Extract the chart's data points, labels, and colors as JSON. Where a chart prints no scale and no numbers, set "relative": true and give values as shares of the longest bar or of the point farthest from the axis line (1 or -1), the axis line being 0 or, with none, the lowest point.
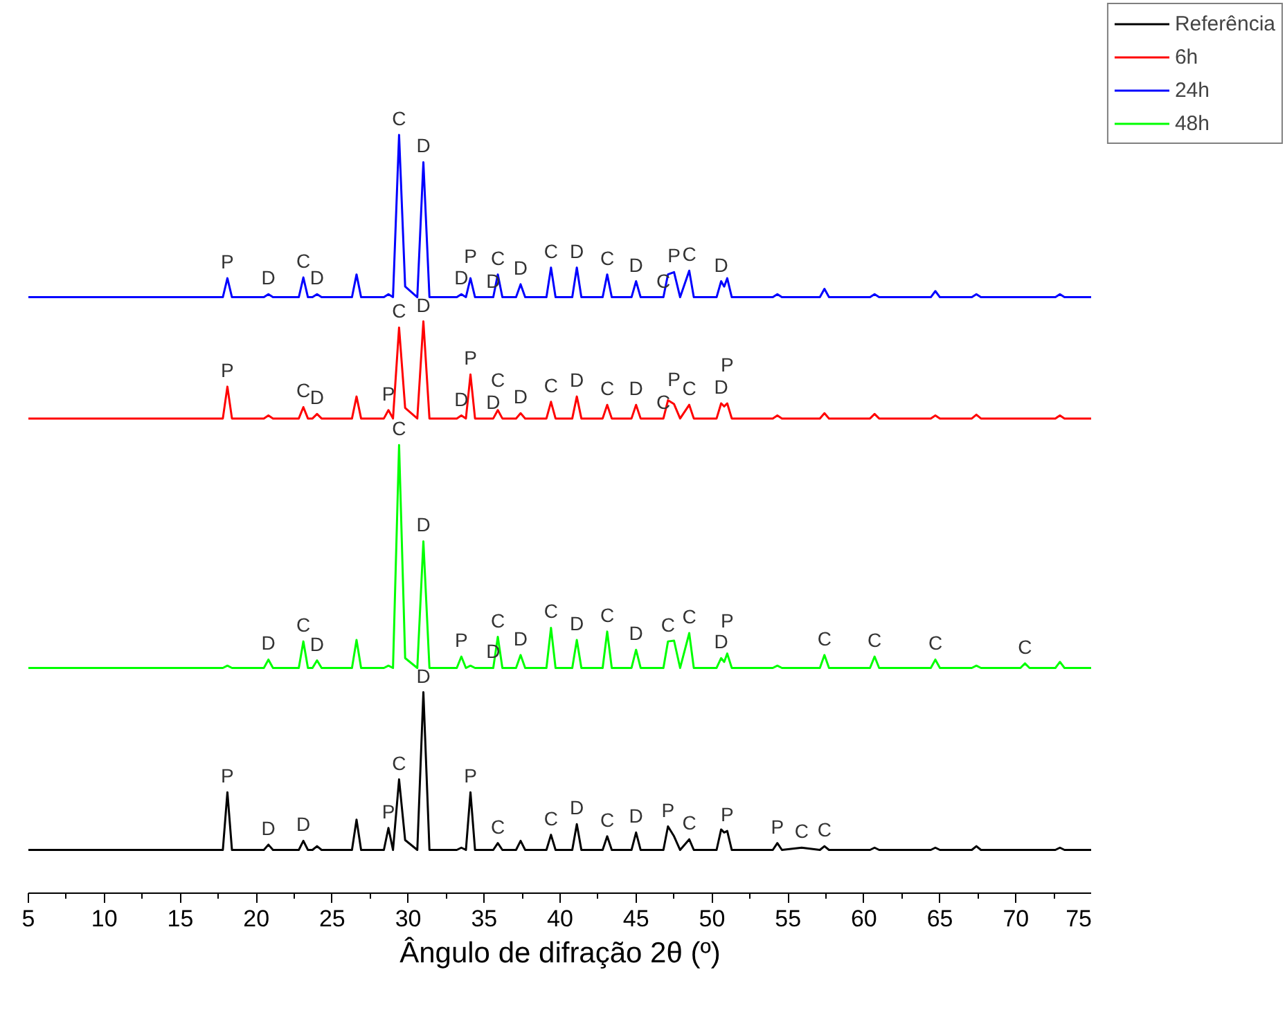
{
  "chart_data": {
    "type": "line",
    "relative": true,
    "xlabel": "Ângulo de difração 2θ (º)",
    "xlim": [
      5,
      75
    ],
    "xticks": [
      5,
      10,
      15,
      20,
      25,
      30,
      35,
      40,
      45,
      50,
      55,
      60,
      65,
      70,
      75
    ],
    "grid": false,
    "legend": "top right",
    "marker": "none",
    "line_style": "solid",
    "x": [
      5,
      17.8,
      18.1,
      18.4,
      20.5,
      20.8,
      21.1,
      22.8,
      23.1,
      23.4,
      23.7,
      24.0,
      24.3,
      26.3,
      26.6,
      26.9,
      28.4,
      28.7,
      29.0,
      29.4,
      29.8,
      30.6,
      31.0,
      31.4,
      33.2,
      33.5,
      33.8,
      34.1,
      34.4,
      35.6,
      35.9,
      36.2,
      37.1,
      37.4,
      37.7,
      39.1,
      39.4,
      39.7,
      40.8,
      41.1,
      41.4,
      42.8,
      43.1,
      43.4,
      44.7,
      45.0,
      45.3,
      46.8,
      47.1,
      47.5,
      47.9,
      48.5,
      48.8,
      50.3,
      50.6,
      50.8,
      51.0,
      51.3,
      54.0,
      54.3,
      54.6,
      55.9,
      57.1,
      57.4,
      57.7,
      60.4,
      60.7,
      61.0,
      64.4,
      64.7,
      65.0,
      67.1,
      67.4,
      67.7,
      70.3,
      70.6,
      70.9,
      72.6,
      72.9,
      73.2,
      75
    ],
    "series": [
      {
        "name": "Referência",
        "color": "#000000",
        "values": [
          0.057,
          0.057,
          0.133,
          0.057,
          0.057,
          0.064,
          0.057,
          0.057,
          0.069,
          0.057,
          0.057,
          0.062,
          0.057,
          0.057,
          0.097,
          0.057,
          0.057,
          0.086,
          0.057,
          0.15,
          0.07,
          0.057,
          0.265,
          0.057,
          0.057,
          0.06,
          0.057,
          0.133,
          0.057,
          0.057,
          0.066,
          0.057,
          0.057,
          0.069,
          0.057,
          0.057,
          0.077,
          0.057,
          0.057,
          0.091,
          0.057,
          0.057,
          0.075,
          0.057,
          0.057,
          0.08,
          0.057,
          0.057,
          0.088,
          0.075,
          0.057,
          0.071,
          0.057,
          0.057,
          0.084,
          0.08,
          0.082,
          0.057,
          0.057,
          0.066,
          0.057,
          0.06,
          0.057,
          0.062,
          0.057,
          0.057,
          0.06,
          0.057,
          0.057,
          0.06,
          0.057,
          0.057,
          0.062,
          0.057,
          0.057,
          0.057,
          0.057,
          0.057,
          0.06,
          0.057,
          0.057
        ]
      },
      {
        "name": "6h",
        "color": "#ff0000",
        "values": [
          0.626,
          0.626,
          0.668,
          0.626,
          0.626,
          0.63,
          0.626,
          0.626,
          0.641,
          0.626,
          0.626,
          0.632,
          0.626,
          0.626,
          0.655,
          0.626,
          0.626,
          0.637,
          0.626,
          0.746,
          0.64,
          0.626,
          0.754,
          0.626,
          0.626,
          0.63,
          0.626,
          0.684,
          0.626,
          0.626,
          0.637,
          0.626,
          0.626,
          0.633,
          0.626,
          0.626,
          0.648,
          0.626,
          0.626,
          0.655,
          0.626,
          0.626,
          0.644,
          0.626,
          0.626,
          0.644,
          0.626,
          0.626,
          0.65,
          0.645,
          0.626,
          0.644,
          0.626,
          0.626,
          0.646,
          0.642,
          0.646,
          0.626,
          0.626,
          0.63,
          0.626,
          0.626,
          0.626,
          0.633,
          0.626,
          0.626,
          0.632,
          0.626,
          0.626,
          0.63,
          0.626,
          0.626,
          0.631,
          0.626,
          0.626,
          0.626,
          0.626,
          0.626,
          0.63,
          0.626,
          0.626
        ]
      },
      {
        "name": "24h",
        "color": "#0000ff",
        "values": [
          0.786,
          0.786,
          0.811,
          0.786,
          0.786,
          0.79,
          0.786,
          0.786,
          0.812,
          0.786,
          0.786,
          0.79,
          0.786,
          0.786,
          0.816,
          0.786,
          0.786,
          0.79,
          0.786,
          1.0,
          0.8,
          0.786,
          0.964,
          0.786,
          0.786,
          0.79,
          0.786,
          0.811,
          0.786,
          0.786,
          0.816,
          0.786,
          0.786,
          0.803,
          0.786,
          0.786,
          0.825,
          0.786,
          0.786,
          0.825,
          0.786,
          0.786,
          0.816,
          0.786,
          0.786,
          0.807,
          0.786,
          0.786,
          0.816,
          0.819,
          0.786,
          0.821,
          0.786,
          0.786,
          0.807,
          0.8,
          0.811,
          0.786,
          0.786,
          0.79,
          0.786,
          0.786,
          0.786,
          0.797,
          0.786,
          0.786,
          0.79,
          0.786,
          0.786,
          0.794,
          0.786,
          0.786,
          0.79,
          0.786,
          0.786,
          0.786,
          0.786,
          0.786,
          0.79,
          0.786,
          0.786
        ]
      },
      {
        "name": "48h",
        "color": "#00ff00",
        "values": [
          0.297,
          0.297,
          0.3,
          0.297,
          0.297,
          0.308,
          0.297,
          0.297,
          0.332,
          0.297,
          0.297,
          0.307,
          0.297,
          0.297,
          0.334,
          0.297,
          0.297,
          0.3,
          0.297,
          0.591,
          0.31,
          0.297,
          0.464,
          0.297,
          0.297,
          0.312,
          0.297,
          0.3,
          0.297,
          0.297,
          0.338,
          0.297,
          0.297,
          0.314,
          0.297,
          0.297,
          0.35,
          0.297,
          0.297,
          0.334,
          0.297,
          0.297,
          0.345,
          0.297,
          0.297,
          0.321,
          0.297,
          0.297,
          0.332,
          0.333,
          0.297,
          0.343,
          0.297,
          0.297,
          0.31,
          0.305,
          0.316,
          0.297,
          0.297,
          0.3,
          0.297,
          0.297,
          0.297,
          0.314,
          0.297,
          0.297,
          0.312,
          0.297,
          0.297,
          0.308,
          0.297,
          0.297,
          0.3,
          0.297,
          0.297,
          0.303,
          0.297,
          0.297,
          0.305,
          0.297,
          0.297
        ]
      }
    ],
    "annotations": [
      {
        "text": "P",
        "x": 18.1,
        "y": 0.811
      },
      {
        "text": "D",
        "x": 20.8,
        "y": 0.79
      },
      {
        "text": "C",
        "x": 23.1,
        "y": 0.812
      },
      {
        "text": "D",
        "x": 24.0,
        "y": 0.79
      },
      {
        "text": "C",
        "x": 29.4,
        "y": 1.0
      },
      {
        "text": "D",
        "x": 31.0,
        "y": 0.964
      },
      {
        "text": "D",
        "x": 33.5,
        "y": 0.79
      },
      {
        "text": "P",
        "x": 34.1,
        "y": 0.811
      },
      {
        "text": "D",
        "x": 35.6,
        "y": 0.786
      },
      {
        "text": "C",
        "x": 35.9,
        "y": 0.816
      },
      {
        "text": "D",
        "x": 37.4,
        "y": 0.803
      },
      {
        "text": "C",
        "x": 39.4,
        "y": 0.825
      },
      {
        "text": "D",
        "x": 41.1,
        "y": 0.825
      },
      {
        "text": "C",
        "x": 43.1,
        "y": 0.816
      },
      {
        "text": "D",
        "x": 45.0,
        "y": 0.807
      },
      {
        "text": "C",
        "x": 46.8,
        "y": 0.786
      },
      {
        "text": "P",
        "x": 47.5,
        "y": 0.819
      },
      {
        "text": "C",
        "x": 48.5,
        "y": 0.821
      },
      {
        "text": "D",
        "x": 50.6,
        "y": 0.807
      },
      {
        "text": "P",
        "x": 18.1,
        "y": 0.668
      },
      {
        "text": "C",
        "x": 23.1,
        "y": 0.641
      },
      {
        "text": "D",
        "x": 24.0,
        "y": 0.632
      },
      {
        "text": "P",
        "x": 28.7,
        "y": 0.637
      },
      {
        "text": "C",
        "x": 29.4,
        "y": 0.746
      },
      {
        "text": "D",
        "x": 31.0,
        "y": 0.754
      },
      {
        "text": "P",
        "x": 34.1,
        "y": 0.684
      },
      {
        "text": "D",
        "x": 33.5,
        "y": 0.63
      },
      {
        "text": "D",
        "x": 35.6,
        "y": 0.626
      },
      {
        "text": "C",
        "x": 35.9,
        "y": 0.637
      },
      {
        "text": "D",
        "x": 37.4,
        "y": 0.633
      },
      {
        "text": "C",
        "x": 39.4,
        "y": 0.648
      },
      {
        "text": "D",
        "x": 41.1,
        "y": 0.655
      },
      {
        "text": "C",
        "x": 43.1,
        "y": 0.644
      },
      {
        "text": "D",
        "x": 45.0,
        "y": 0.644
      },
      {
        "text": "C",
        "x": 46.8,
        "y": 0.626
      },
      {
        "text": "P",
        "x": 47.5,
        "y": 0.645
      },
      {
        "text": "C",
        "x": 48.5,
        "y": 0.644
      },
      {
        "text": "D",
        "x": 50.6,
        "y": 0.646
      },
      {
        "text": "P",
        "x": 51.0,
        "y": 0.646
      },
      {
        "text": "C",
        "x": 29.4,
        "y": 0.591
      },
      {
        "text": "D",
        "x": 31.0,
        "y": 0.464
      },
      {
        "text": "C",
        "x": 23.1,
        "y": 0.332
      },
      {
        "text": "D",
        "x": 20.8,
        "y": 0.308
      },
      {
        "text": "D",
        "x": 24.0,
        "y": 0.307
      },
      {
        "text": "P",
        "x": 33.5,
        "y": 0.312
      },
      {
        "text": "D",
        "x": 35.6,
        "y": 0.297
      },
      {
        "text": "C",
        "x": 35.9,
        "y": 0.338
      },
      {
        "text": "D",
        "x": 37.4,
        "y": 0.314
      },
      {
        "text": "C",
        "x": 39.4,
        "y": 0.35
      },
      {
        "text": "D",
        "x": 41.1,
        "y": 0.334
      },
      {
        "text": "C",
        "x": 43.1,
        "y": 0.345
      },
      {
        "text": "D",
        "x": 45.0,
        "y": 0.321
      },
      {
        "text": "C",
        "x": 47.1,
        "y": 0.332
      },
      {
        "text": "C",
        "x": 48.5,
        "y": 0.343
      },
      {
        "text": "D",
        "x": 50.6,
        "y": 0.31
      },
      {
        "text": "P",
        "x": 51.0,
        "y": 0.316
      },
      {
        "text": "C",
        "x": 57.4,
        "y": 0.314
      },
      {
        "text": "C",
        "x": 60.7,
        "y": 0.312
      },
      {
        "text": "C",
        "x": 64.7,
        "y": 0.308
      },
      {
        "text": "C",
        "x": 70.6,
        "y": 0.303
      },
      {
        "text": "P",
        "x": 18.1,
        "y": 0.133
      },
      {
        "text": "D",
        "x": 20.8,
        "y": 0.064
      },
      {
        "text": "D",
        "x": 23.1,
        "y": 0.069
      },
      {
        "text": "P",
        "x": 28.7,
        "y": 0.086
      },
      {
        "text": "C",
        "x": 29.4,
        "y": 0.15
      },
      {
        "text": "D",
        "x": 31.0,
        "y": 0.265
      },
      {
        "text": "P",
        "x": 34.1,
        "y": 0.133
      },
      {
        "text": "C",
        "x": 35.9,
        "y": 0.066
      },
      {
        "text": "C",
        "x": 39.4,
        "y": 0.077
      },
      {
        "text": "D",
        "x": 41.1,
        "y": 0.091
      },
      {
        "text": "C",
        "x": 43.1,
        "y": 0.075
      },
      {
        "text": "D",
        "x": 45.0,
        "y": 0.08
      },
      {
        "text": "P",
        "x": 47.1,
        "y": 0.088
      },
      {
        "text": "C",
        "x": 48.5,
        "y": 0.071
      },
      {
        "text": "P",
        "x": 51.0,
        "y": 0.082
      },
      {
        "text": "P",
        "x": 54.3,
        "y": 0.066
      },
      {
        "text": "C",
        "x": 55.9,
        "y": 0.06
      },
      {
        "text": "C",
        "x": 57.4,
        "y": 0.062
      }
    ]
  }
}
